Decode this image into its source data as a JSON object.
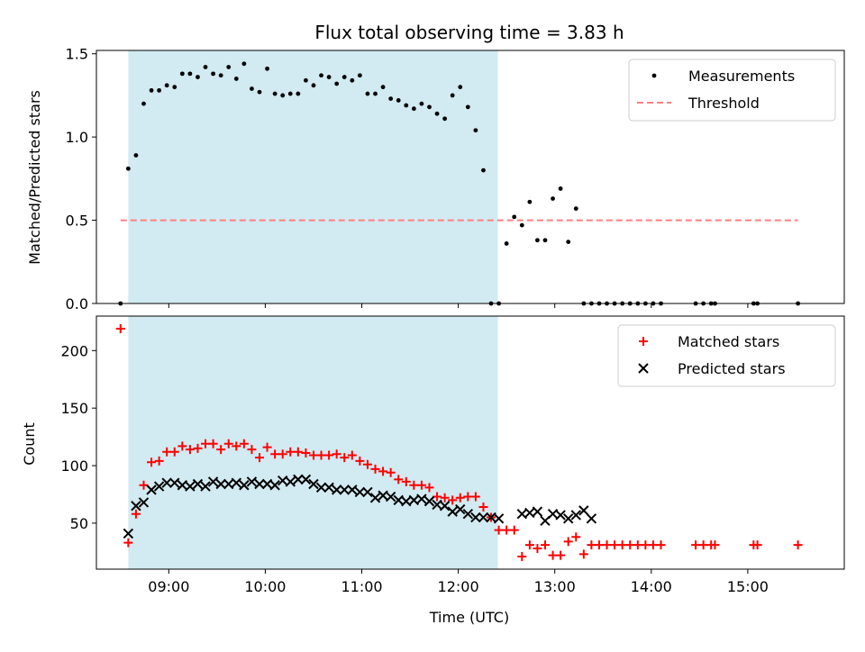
{
  "chart_data": [
    {
      "type": "scatter",
      "title": "Flux total observing time = 3.83 h",
      "xlabel": "",
      "ylabel": "Matched/Predicted stars",
      "xlim": [
        8.25,
        16.0
      ],
      "ylim": [
        0,
        1.52
      ],
      "yticks": [
        0.0,
        0.5,
        1.0,
        1.5
      ],
      "ytick_labels": [
        "0.0",
        "0.5",
        "1.0",
        "1.5"
      ],
      "shaded_interval": [
        8.58,
        12.41
      ],
      "shade_color": "#add8e6",
      "legend_position": "top-right",
      "threshold": {
        "name": "Threshold",
        "value": 0.5,
        "x_range": [
          8.5,
          15.52
        ],
        "color": "#ff7f7f",
        "style": "dashed"
      },
      "series": [
        {
          "name": "Measurements",
          "marker": "dot",
          "color": "#000000",
          "x": [
            8.5,
            8.58,
            8.66,
            8.74,
            8.82,
            8.9,
            8.98,
            9.06,
            9.14,
            9.22,
            9.3,
            9.38,
            9.46,
            9.54,
            9.62,
            9.7,
            9.78,
            9.86,
            9.94,
            10.02,
            10.1,
            10.18,
            10.26,
            10.34,
            10.42,
            10.5,
            10.58,
            10.66,
            10.74,
            10.82,
            10.9,
            10.98,
            11.06,
            11.14,
            11.22,
            11.3,
            11.38,
            11.46,
            11.54,
            11.62,
            11.7,
            11.78,
            11.86,
            11.94,
            12.02,
            12.1,
            12.18,
            12.26,
            12.34,
            12.42,
            12.5,
            12.58,
            12.66,
            12.74,
            12.82,
            12.9,
            12.98,
            13.06,
            13.14,
            13.22,
            13.3,
            13.38,
            13.46,
            13.54,
            13.62,
            13.7,
            13.78,
            13.86,
            13.94,
            14.02,
            14.1,
            14.46,
            14.54,
            14.62,
            14.66,
            15.06,
            15.1,
            15.52
          ],
          "y": [
            0.0,
            0.81,
            0.89,
            1.2,
            1.28,
            1.28,
            1.31,
            1.3,
            1.38,
            1.38,
            1.36,
            1.42,
            1.38,
            1.37,
            1.42,
            1.35,
            1.44,
            1.29,
            1.27,
            1.41,
            1.26,
            1.25,
            1.26,
            1.26,
            1.34,
            1.31,
            1.37,
            1.36,
            1.32,
            1.36,
            1.34,
            1.37,
            1.26,
            1.26,
            1.3,
            1.23,
            1.22,
            1.19,
            1.17,
            1.2,
            1.18,
            1.14,
            1.11,
            1.25,
            1.3,
            1.18,
            1.04,
            0.8,
            0.0,
            0.0,
            0.36,
            0.52,
            0.47,
            0.61,
            0.38,
            0.38,
            0.63,
            0.69,
            0.37,
            0.57,
            0.0,
            0.0,
            0.0,
            0.0,
            0.0,
            0.0,
            0.0,
            0.0,
            0.0,
            0.0,
            0.0,
            0.0,
            0.0,
            0.0,
            0.0,
            0.0,
            0.0,
            0.0
          ]
        }
      ]
    },
    {
      "type": "scatter",
      "title": "",
      "xlabel": "Time (UTC)",
      "ylabel": "Count",
      "xlim": [
        8.25,
        16.0
      ],
      "ylim": [
        10,
        230
      ],
      "yticks": [
        50,
        100,
        150,
        200
      ],
      "ytick_labels": [
        "50",
        "100",
        "150",
        "200"
      ],
      "xticks": [
        9,
        10,
        11,
        12,
        13,
        14,
        15
      ],
      "xtick_labels": [
        "09:00",
        "10:00",
        "11:00",
        "12:00",
        "13:00",
        "14:00",
        "15:00"
      ],
      "shaded_interval": [
        8.58,
        12.41
      ],
      "shade_color": "#add8e6",
      "legend_position": "top-right",
      "series": [
        {
          "name": "Matched stars",
          "marker": "plus",
          "color": "#ff0000",
          "x": [
            8.5,
            8.58,
            8.66,
            8.74,
            8.82,
            8.9,
            8.98,
            9.06,
            9.14,
            9.22,
            9.3,
            9.38,
            9.46,
            9.54,
            9.62,
            9.7,
            9.78,
            9.86,
            9.94,
            10.02,
            10.1,
            10.18,
            10.26,
            10.34,
            10.42,
            10.5,
            10.58,
            10.66,
            10.74,
            10.82,
            10.9,
            10.98,
            11.06,
            11.14,
            11.22,
            11.3,
            11.38,
            11.46,
            11.54,
            11.62,
            11.7,
            11.78,
            11.86,
            11.94,
            12.02,
            12.1,
            12.18,
            12.26,
            12.34,
            12.42,
            12.5,
            12.58,
            12.66,
            12.74,
            12.82,
            12.9,
            12.98,
            13.06,
            13.14,
            13.22,
            13.3,
            13.38,
            13.46,
            13.54,
            13.62,
            13.7,
            13.78,
            13.86,
            13.94,
            14.02,
            14.1,
            14.46,
            14.54,
            14.62,
            14.66,
            15.06,
            15.1,
            15.52
          ],
          "y": [
            219,
            33,
            58,
            83,
            103,
            104,
            112,
            112,
            117,
            114,
            115,
            119,
            119,
            114,
            119,
            117,
            119,
            114,
            107,
            116,
            110,
            110,
            112,
            112,
            111,
            109,
            109,
            109,
            110,
            107,
            109,
            104,
            101,
            97,
            95,
            94,
            88,
            86,
            83,
            83,
            81,
            73,
            72,
            70,
            72,
            73,
            73,
            64,
            55,
            44,
            44,
            44,
            21,
            31,
            28,
            31,
            22,
            22,
            34,
            38,
            23,
            31,
            31,
            31,
            31,
            31,
            31,
            31,
            31,
            31,
            31,
            31,
            31,
            31,
            31,
            31,
            31,
            31
          ]
        },
        {
          "name": "Predicted stars",
          "marker": "x",
          "color": "#000000",
          "x": [
            8.58,
            8.66,
            8.74,
            8.82,
            8.9,
            8.98,
            9.06,
            9.14,
            9.22,
            9.3,
            9.38,
            9.46,
            9.54,
            9.62,
            9.7,
            9.78,
            9.86,
            9.94,
            10.02,
            10.1,
            10.18,
            10.26,
            10.34,
            10.42,
            10.5,
            10.58,
            10.66,
            10.74,
            10.82,
            10.9,
            10.98,
            11.06,
            11.14,
            11.22,
            11.3,
            11.38,
            11.46,
            11.54,
            11.62,
            11.7,
            11.78,
            11.86,
            11.94,
            12.02,
            12.1,
            12.18,
            12.26,
            12.34,
            12.42,
            12.66,
            12.74,
            12.82,
            12.9,
            12.98,
            13.06,
            13.14,
            13.22,
            13.3,
            13.38
          ],
          "y": [
            41,
            65,
            68,
            79,
            82,
            85,
            85,
            83,
            82,
            84,
            82,
            86,
            84,
            84,
            85,
            83,
            86,
            84,
            84,
            83,
            87,
            86,
            88,
            88,
            84,
            81,
            81,
            79,
            79,
            79,
            77,
            77,
            72,
            74,
            73,
            70,
            69,
            70,
            71,
            69,
            66,
            65,
            60,
            62,
            58,
            55,
            55,
            55,
            54,
            58,
            59,
            60,
            52,
            58,
            57,
            54,
            57,
            61,
            54
          ]
        }
      ]
    }
  ]
}
